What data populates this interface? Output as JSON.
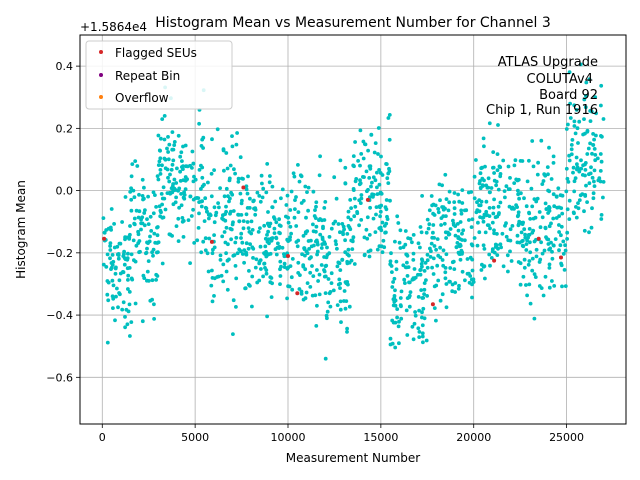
{
  "chart_data": {
    "type": "scatter",
    "title": "Histogram Mean vs Measurement Number for Channel 3",
    "xlabel": "Measurement Number",
    "ylabel": "Histogram Mean",
    "offset_label": "+1.5864e4",
    "xlim": [
      -1200,
      28200
    ],
    "ylim": [
      -0.75,
      0.5
    ],
    "x_ticks": [
      0,
      5000,
      10000,
      15000,
      20000,
      25000
    ],
    "x_tick_labels": [
      "0",
      "5000",
      "10000",
      "15000",
      "20000",
      "25000"
    ],
    "y_ticks": [
      -0.6,
      -0.4,
      -0.2,
      0.0,
      0.2,
      0.4
    ],
    "y_tick_labels": [
      "−0.6",
      "−0.4",
      "−0.2",
      "0.0",
      "0.2",
      "0.4"
    ],
    "grid": true,
    "legend_position": "top-left",
    "annotation_lines": [
      "ATLAS Upgrade",
      "COLUTAv4",
      "Board 92",
      "Chip 1, Run 1916"
    ],
    "series": [
      {
        "name": "Flagged SEUs",
        "color": "#d62728",
        "x": [
          100,
          5900,
          7600,
          10000,
          10500,
          14300,
          17800,
          21100,
          23500,
          24700
        ],
        "y": [
          -0.155,
          -0.165,
          0.01,
          -0.21,
          -0.33,
          -0.03,
          -0.365,
          -0.225,
          -0.155,
          -0.215
        ]
      },
      {
        "name": "Repeat Bin",
        "color": "#800080",
        "x": [],
        "y": []
      },
      {
        "name": "Overflow",
        "color": "#ff7f0e",
        "x": [],
        "y": []
      },
      {
        "name": "",
        "color": "#00bfbf",
        "x": [
          0,
          27000
        ],
        "bands": [
          {
            "x": [
              0,
              1500
            ],
            "center": -0.24,
            "spread": 0.13
          },
          {
            "x": [
              1500,
              3000
            ],
            "center": -0.14,
            "spread": 0.15
          },
          {
            "x": [
              3000,
              5500
            ],
            "center": 0.03,
            "spread": 0.15
          },
          {
            "x": [
              5500,
              8000
            ],
            "center": -0.08,
            "spread": 0.17
          },
          {
            "x": [
              8000,
              10000
            ],
            "center": -0.16,
            "spread": 0.14
          },
          {
            "x": [
              10000,
              12000
            ],
            "center": -0.17,
            "spread": 0.15
          },
          {
            "x": [
              12000,
              13500
            ],
            "center": -0.2,
            "spread": 0.17
          },
          {
            "x": [
              13500,
              15500
            ],
            "center": -0.01,
            "spread": 0.15
          },
          {
            "x": [
              15500,
              17500
            ],
            "center": -0.3,
            "spread": 0.14
          },
          {
            "x": [
              17500,
              20000
            ],
            "center": -0.16,
            "spread": 0.13
          },
          {
            "x": [
              20000,
              22500
            ],
            "center": -0.06,
            "spread": 0.15
          },
          {
            "x": [
              22500,
              25000
            ],
            "center": -0.12,
            "spread": 0.16
          },
          {
            "x": [
              25000,
              27000
            ],
            "center": 0.1,
            "spread": 0.15
          }
        ]
      }
    ]
  }
}
